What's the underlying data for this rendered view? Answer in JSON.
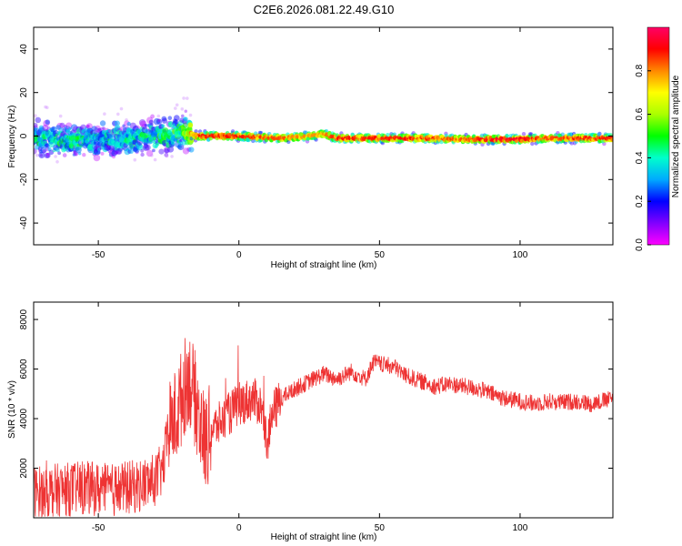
{
  "title": "C2E6.2026.081.22.49.G10",
  "chart_data": [
    {
      "type": "heatmap",
      "xlabel": "Height of straight line (km)",
      "ylabel": "Frequency (Hz)",
      "xlim": [
        -73,
        133
      ],
      "ylim": [
        -50,
        50
      ],
      "xticks": [
        -50,
        0,
        50,
        100
      ],
      "yticks": [
        -40,
        -20,
        0,
        20,
        40
      ],
      "grid": false,
      "colorbar": {
        "label": "Normalized spectral amplitude",
        "range": [
          0.0,
          1.0
        ],
        "ticks": [
          "0.0",
          "0.2",
          "0.4",
          "0.6",
          "0.8"
        ],
        "colormap": [
          "#ff00ff",
          "#8000ff",
          "#0000ff",
          "#00aaff",
          "#00ffcc",
          "#00ff00",
          "#aaff00",
          "#ffff00",
          "#ff8800",
          "#ff0000",
          "#ff0066"
        ]
      },
      "ridge": [
        {
          "x": -73,
          "f": -1.0,
          "amp": 0.35
        },
        {
          "x": -60,
          "f": -2.0,
          "amp": 0.4
        },
        {
          "x": -50,
          "f": -2.0,
          "amp": 0.35
        },
        {
          "x": -40,
          "f": -1.0,
          "amp": 0.35
        },
        {
          "x": -30,
          "f": 0.0,
          "amp": 0.4
        },
        {
          "x": -20,
          "f": 2.0,
          "amp": 0.45
        },
        {
          "x": -15,
          "f": 0.0,
          "amp": 0.9
        },
        {
          "x": 0,
          "f": 0.0,
          "amp": 0.9
        },
        {
          "x": 15,
          "f": -1.0,
          "amp": 0.85
        },
        {
          "x": 25,
          "f": 0.0,
          "amp": 0.8
        },
        {
          "x": 30,
          "f": 1.0,
          "amp": 0.8
        },
        {
          "x": 35,
          "f": -1.0,
          "amp": 0.9
        },
        {
          "x": 50,
          "f": -1.0,
          "amp": 0.9
        },
        {
          "x": 65,
          "f": -1.0,
          "amp": 0.9
        },
        {
          "x": 80,
          "f": -1.5,
          "amp": 0.85
        },
        {
          "x": 90,
          "f": -1.5,
          "amp": 0.95
        },
        {
          "x": 100,
          "f": -1.5,
          "amp": 0.95
        },
        {
          "x": 110,
          "f": -1.0,
          "amp": 0.85
        },
        {
          "x": 120,
          "f": -1.0,
          "amp": 0.9
        },
        {
          "x": 133,
          "f": -1.0,
          "amp": 0.9
        }
      ]
    },
    {
      "type": "line",
      "xlabel": "Height of straight line (km)",
      "ylabel": "SNR (10 * v/v)",
      "xlim": [
        -73,
        133
      ],
      "ylim": [
        0,
        8700
      ],
      "xticks": [
        -50,
        0,
        50,
        100
      ],
      "yticks": [
        2000,
        4000,
        6000,
        8000
      ],
      "grid": false,
      "color": "#ee3333",
      "series": [
        {
          "x": [
            -73,
            -65,
            -55,
            -45,
            -35,
            -30,
            -27,
            -25,
            -22,
            -20,
            -18,
            -15,
            -12,
            -10,
            -5,
            0,
            5,
            8,
            10,
            12,
            15,
            20,
            25,
            30,
            35,
            40,
            45,
            48,
            50,
            55,
            60,
            65,
            70,
            75,
            80,
            85,
            90,
            95,
            100,
            105,
            110,
            115,
            120,
            125,
            133
          ],
          "y": [
            1000,
            1100,
            1200,
            1100,
            1300,
            1500,
            2000,
            3500,
            4200,
            5000,
            5800,
            4500,
            3000,
            3500,
            4000,
            4600,
            4800,
            4500,
            3000,
            4200,
            4800,
            5200,
            5500,
            5800,
            5600,
            5900,
            5600,
            6300,
            6200,
            6100,
            5700,
            5500,
            5300,
            5400,
            5300,
            5200,
            5000,
            4800,
            4700,
            4600,
            4700,
            4650,
            4700,
            4600,
            4800
          ]
        }
      ]
    }
  ]
}
